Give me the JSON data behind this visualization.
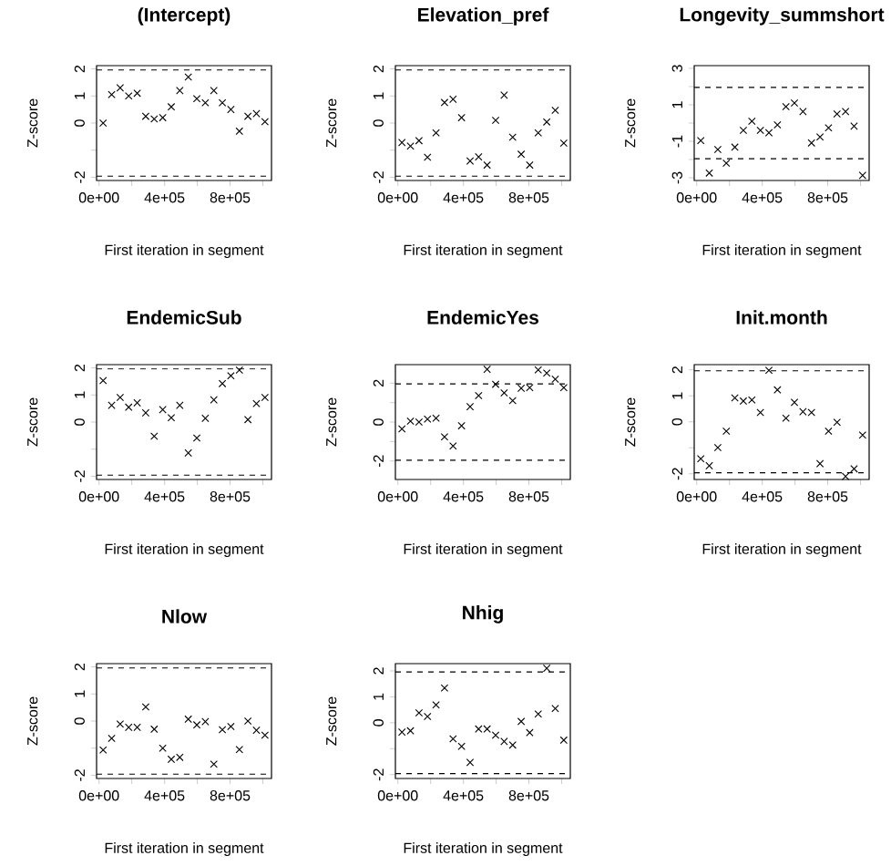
{
  "chart_data": [
    {
      "type": "scatter",
      "title": "(Intercept)",
      "xlabel": "First iteration in segment",
      "ylabel": "Z-score",
      "color": "#000000",
      "marker": "cross",
      "x": [
        25000,
        77000,
        129000,
        181000,
        233000,
        285000,
        337000,
        389000,
        441000,
        493000,
        545000,
        597000,
        649000,
        701000,
        753000,
        805000,
        857000,
        909000,
        961000,
        1013000
      ],
      "values": [
        0.0,
        1.05,
        1.3,
        1.0,
        1.1,
        0.25,
        0.15,
        0.2,
        0.6,
        1.2,
        1.7,
        0.9,
        0.75,
        1.2,
        0.75,
        0.5,
        -0.3,
        0.25,
        0.35,
        0.05
      ],
      "xlim": [
        -15000,
        1053000
      ],
      "ylim": [
        -2.12,
        2.12
      ],
      "xticks": [
        {
          "value": 0,
          "label": "0e+00"
        },
        {
          "value": 200000,
          "label": null
        },
        {
          "value": 400000,
          "label": "4e+05"
        },
        {
          "value": 600000,
          "label": null
        },
        {
          "value": 800000,
          "label": "8e+05"
        },
        {
          "value": 1000000,
          "label": null
        }
      ],
      "yticks": [
        -2,
        {
          "value": -1,
          "label": null
        },
        0,
        1,
        2
      ],
      "ref_lines": [
        {
          "axis": "y",
          "value": 1.96,
          "line_style": "dashed"
        },
        {
          "axis": "y",
          "value": -1.96,
          "line_style": "dashed"
        }
      ]
    },
    {
      "type": "scatter",
      "title": "Elevation_pref",
      "xlabel": "First iteration in segment",
      "ylabel": "Z-score",
      "color": "#000000",
      "marker": "cross",
      "x": [
        25000,
        77000,
        129000,
        181000,
        233000,
        285000,
        337000,
        389000,
        441000,
        493000,
        545000,
        597000,
        649000,
        701000,
        753000,
        805000,
        857000,
        909000,
        961000,
        1013000
      ],
      "values": [
        -0.72,
        -0.85,
        -0.65,
        -1.26,
        -0.36,
        0.76,
        0.88,
        0.2,
        -1.4,
        -1.25,
        -1.55,
        0.1,
        1.03,
        -0.52,
        -1.15,
        -1.55,
        -0.36,
        0.04,
        0.47,
        -0.74
      ],
      "xlim": [
        -15000,
        1053000
      ],
      "ylim": [
        -2.12,
        2.12
      ],
      "xticks": [
        {
          "value": 0,
          "label": "0e+00"
        },
        {
          "value": 200000,
          "label": null
        },
        {
          "value": 400000,
          "label": "4e+05"
        },
        {
          "value": 600000,
          "label": null
        },
        {
          "value": 800000,
          "label": "8e+05"
        },
        {
          "value": 1000000,
          "label": null
        }
      ],
      "yticks": [
        -2,
        {
          "value": -1,
          "label": null
        },
        0,
        1,
        2
      ],
      "ref_lines": [
        {
          "axis": "y",
          "value": 1.96,
          "line_style": "dashed"
        },
        {
          "axis": "y",
          "value": -1.96,
          "line_style": "dashed"
        }
      ]
    },
    {
      "type": "scatter",
      "title": "Longevity_summshort",
      "xlabel": "First iteration in segment",
      "ylabel": "Z-score",
      "color": "#000000",
      "marker": "cross",
      "x": [
        25000,
        77000,
        129000,
        181000,
        233000,
        285000,
        337000,
        389000,
        441000,
        493000,
        545000,
        597000,
        649000,
        701000,
        753000,
        805000,
        857000,
        909000,
        961000,
        1013000
      ],
      "values": [
        -0.96,
        -2.74,
        -1.45,
        -2.2,
        -1.32,
        -0.4,
        0.1,
        -0.4,
        -0.53,
        -0.1,
        0.9,
        1.1,
        0.63,
        -1.09,
        -0.76,
        -0.26,
        0.5,
        0.63,
        -0.17,
        -2.87
      ],
      "xlim": [
        -15000,
        1053000
      ],
      "ylim": [
        -3.15,
        3.15
      ],
      "xticks": [
        {
          "value": 0,
          "label": "0e+00"
        },
        {
          "value": 200000,
          "label": null
        },
        {
          "value": 400000,
          "label": "4e+05"
        },
        {
          "value": 600000,
          "label": null
        },
        {
          "value": 800000,
          "label": "8e+05"
        },
        {
          "value": 1000000,
          "label": null
        }
      ],
      "yticks": [
        -3,
        {
          "value": -2,
          "label": null
        },
        -1,
        {
          "value": 0,
          "label": null
        },
        1,
        {
          "value": 2,
          "label": null
        },
        3
      ],
      "ref_lines": [
        {
          "axis": "y",
          "value": 1.96,
          "line_style": "dashed"
        },
        {
          "axis": "y",
          "value": -1.96,
          "line_style": "dashed"
        }
      ]
    },
    {
      "type": "scatter",
      "title": "EndemicSub",
      "xlabel": "First iteration in segment",
      "ylabel": "Z-score",
      "color": "#000000",
      "marker": "cross",
      "x": [
        25000,
        77000,
        129000,
        181000,
        233000,
        285000,
        337000,
        389000,
        441000,
        493000,
        545000,
        597000,
        649000,
        701000,
        753000,
        805000,
        857000,
        909000,
        961000,
        1013000
      ],
      "values": [
        1.53,
        0.62,
        0.91,
        0.55,
        0.71,
        0.34,
        -0.52,
        0.46,
        0.16,
        0.62,
        -1.14,
        -0.59,
        0.14,
        0.82,
        1.42,
        1.71,
        1.92,
        0.09,
        0.68,
        0.91
      ],
      "xlim": [
        -15000,
        1053000
      ],
      "ylim": [
        -2.12,
        2.12
      ],
      "xticks": [
        {
          "value": 0,
          "label": "0e+00"
        },
        {
          "value": 200000,
          "label": null
        },
        {
          "value": 400000,
          "label": "4e+05"
        },
        {
          "value": 600000,
          "label": null
        },
        {
          "value": 800000,
          "label": "8e+05"
        },
        {
          "value": 1000000,
          "label": null
        }
      ],
      "yticks": [
        -2,
        {
          "value": -1,
          "label": null
        },
        0,
        1,
        2
      ],
      "ref_lines": [
        {
          "axis": "y",
          "value": 1.96,
          "line_style": "dashed"
        },
        {
          "axis": "y",
          "value": -1.96,
          "line_style": "dashed"
        }
      ]
    },
    {
      "type": "scatter",
      "title": "EndemicYes",
      "xlabel": "First iteration in segment",
      "ylabel": "Z-score",
      "color": "#000000",
      "marker": "cross",
      "x": [
        25000,
        77000,
        129000,
        181000,
        233000,
        285000,
        337000,
        389000,
        441000,
        493000,
        545000,
        597000,
        649000,
        701000,
        753000,
        805000,
        857000,
        909000,
        961000,
        1013000
      ],
      "values": [
        -0.35,
        0.05,
        0.0,
        0.15,
        0.2,
        -0.76,
        -1.23,
        -0.19,
        0.79,
        1.36,
        2.71,
        1.94,
        1.5,
        1.1,
        1.74,
        1.77,
        2.68,
        2.52,
        2.2,
        1.77
      ],
      "xlim": [
        -15000,
        1053000
      ],
      "ylim": [
        -2.95,
        2.95
      ],
      "xticks": [
        {
          "value": 0,
          "label": "0e+00"
        },
        {
          "value": 200000,
          "label": null
        },
        {
          "value": 400000,
          "label": "4e+05"
        },
        {
          "value": 600000,
          "label": null
        },
        {
          "value": 800000,
          "label": "8e+05"
        },
        {
          "value": 1000000,
          "label": null
        }
      ],
      "yticks": [
        -2,
        {
          "value": -1,
          "label": null
        },
        0,
        {
          "value": 1,
          "label": null
        },
        2
      ],
      "ref_lines": [
        {
          "axis": "y",
          "value": 1.96,
          "line_style": "dashed"
        },
        {
          "axis": "y",
          "value": -1.96,
          "line_style": "dashed"
        }
      ]
    },
    {
      "type": "scatter",
      "title": "Init.month",
      "xlabel": "First iteration in segment",
      "ylabel": "Z-score",
      "color": "#000000",
      "marker": "cross",
      "x": [
        25000,
        77000,
        129000,
        181000,
        233000,
        285000,
        337000,
        389000,
        441000,
        493000,
        545000,
        597000,
        649000,
        701000,
        753000,
        805000,
        857000,
        909000,
        961000,
        1013000
      ],
      "values": [
        -1.42,
        -1.69,
        -0.99,
        -0.36,
        0.92,
        0.8,
        0.84,
        0.36,
        1.98,
        1.23,
        0.14,
        0.75,
        0.39,
        0.36,
        -1.61,
        -0.36,
        -0.02,
        -2.1,
        -1.81,
        -0.51
      ],
      "xlim": [
        -15000,
        1053000
      ],
      "ylim": [
        -2.22,
        2.2
      ],
      "xticks": [
        {
          "value": 0,
          "label": "0e+00"
        },
        {
          "value": 200000,
          "label": null
        },
        {
          "value": 400000,
          "label": "4e+05"
        },
        {
          "value": 600000,
          "label": null
        },
        {
          "value": 800000,
          "label": "8e+05"
        },
        {
          "value": 1000000,
          "label": null
        }
      ],
      "yticks": [
        -2,
        {
          "value": -1,
          "label": null
        },
        0,
        1,
        2
      ],
      "ref_lines": [
        {
          "axis": "y",
          "value": 1.96,
          "line_style": "dashed"
        },
        {
          "axis": "y",
          "value": -1.96,
          "line_style": "dashed"
        }
      ]
    },
    {
      "type": "scatter",
      "title": "Nlow",
      "xlabel": "First iteration in segment",
      "ylabel": "Z-score",
      "color": "#000000",
      "marker": "cross",
      "x": [
        25000,
        77000,
        129000,
        181000,
        233000,
        285000,
        337000,
        389000,
        441000,
        493000,
        545000,
        597000,
        649000,
        701000,
        753000,
        805000,
        857000,
        909000,
        961000,
        1013000
      ],
      "values": [
        -1.07,
        -0.64,
        -0.11,
        -0.23,
        -0.23,
        0.52,
        -0.3,
        -1.0,
        -1.41,
        -1.34,
        0.07,
        -0.14,
        -0.02,
        -1.59,
        -0.32,
        -0.2,
        -1.05,
        0.0,
        -0.34,
        -0.52
      ],
      "xlim": [
        -15000,
        1053000
      ],
      "ylim": [
        -2.12,
        2.12
      ],
      "xticks": [
        {
          "value": 0,
          "label": "0e+00"
        },
        {
          "value": 200000,
          "label": null
        },
        {
          "value": 400000,
          "label": "4e+05"
        },
        {
          "value": 600000,
          "label": null
        },
        {
          "value": 800000,
          "label": "8e+05"
        },
        {
          "value": 1000000,
          "label": null
        }
      ],
      "yticks": [
        -2,
        {
          "value": -1,
          "label": null
        },
        0,
        1,
        2
      ],
      "ref_lines": [
        {
          "axis": "y",
          "value": 1.96,
          "line_style": "dashed"
        },
        {
          "axis": "y",
          "value": -1.96,
          "line_style": "dashed"
        }
      ]
    },
    {
      "type": "scatter",
      "title": "Nhig",
      "xlabel": "First iteration in segment",
      "ylabel": "Z-score",
      "color": "#000000",
      "marker": "cross",
      "x": [
        25000,
        77000,
        129000,
        181000,
        233000,
        285000,
        337000,
        389000,
        441000,
        493000,
        545000,
        597000,
        649000,
        701000,
        753000,
        805000,
        857000,
        909000,
        961000,
        1013000
      ],
      "values": [
        -0.36,
        -0.31,
        0.38,
        0.24,
        0.69,
        1.34,
        -0.62,
        -0.91,
        -1.53,
        -0.24,
        -0.24,
        -0.48,
        -0.72,
        -0.86,
        0.05,
        -0.38,
        0.34,
        2.1,
        0.55,
        -0.67
      ],
      "xlim": [
        -15000,
        1053000
      ],
      "ylim": [
        -2.15,
        2.28
      ],
      "xticks": [
        {
          "value": 0,
          "label": "0e+00"
        },
        {
          "value": 200000,
          "label": null
        },
        {
          "value": 400000,
          "label": "4e+05"
        },
        {
          "value": 600000,
          "label": null
        },
        {
          "value": 800000,
          "label": "8e+05"
        },
        {
          "value": 1000000,
          "label": null
        }
      ],
      "yticks": [
        -2,
        {
          "value": -1,
          "label": null
        },
        0,
        1,
        2
      ],
      "ref_lines": [
        {
          "axis": "y",
          "value": 1.96,
          "line_style": "dashed"
        },
        {
          "axis": "y",
          "value": -1.96,
          "line_style": "dashed"
        }
      ]
    }
  ]
}
